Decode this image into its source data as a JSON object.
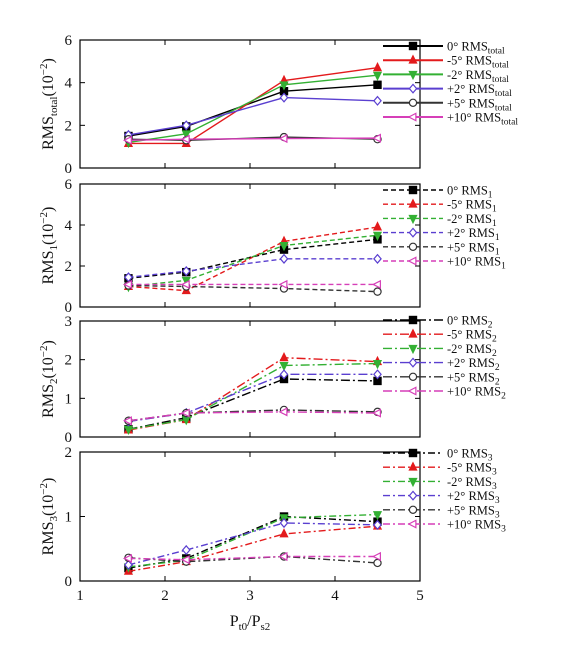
{
  "chart_data": [
    {
      "type": "line",
      "id": "total",
      "ylabel": {
        "main": "RMS",
        "sub": "total",
        "suffix": "(10",
        "exp": "−2",
        "close": ")"
      },
      "ylim": [
        0,
        6
      ],
      "yticks": [
        0,
        2,
        4,
        6
      ],
      "x": [
        1.57,
        2.25,
        3.4,
        4.5
      ],
      "series": [
        {
          "angle": "0°",
          "rms": "RMS",
          "sub": "total",
          "color": "#000000",
          "marker": "square",
          "dash": "solid",
          "values": [
            1.5,
            1.95,
            3.6,
            3.9
          ]
        },
        {
          "angle": "-5°",
          "rms": "RMS",
          "sub": "total",
          "color": "#e31a1c",
          "marker": "triangle",
          "dash": "solid",
          "values": [
            1.15,
            1.15,
            4.1,
            4.7
          ]
        },
        {
          "angle": "-2°",
          "rms": "RMS",
          "sub": "total",
          "color": "#33b033",
          "marker": "triangle-down",
          "dash": "solid",
          "values": [
            1.2,
            1.6,
            3.9,
            4.35
          ]
        },
        {
          "angle": "+2°",
          "rms": "RMS",
          "sub": "total",
          "color": "#5a3fd0",
          "marker": "diamond",
          "dash": "solid",
          "values": [
            1.55,
            2.0,
            3.3,
            3.15
          ]
        },
        {
          "angle": "+5°",
          "rms": "RMS",
          "sub": "total",
          "color": "#333333",
          "marker": "circle",
          "dash": "solid",
          "values": [
            1.35,
            1.3,
            1.45,
            1.35
          ]
        },
        {
          "angle": "+10°",
          "rms": "RMS",
          "sub": "total",
          "color": "#d63fb8",
          "marker": "triangle-left",
          "dash": "solid",
          "values": [
            1.3,
            1.35,
            1.38,
            1.4
          ]
        }
      ]
    },
    {
      "type": "line",
      "id": "rms1",
      "ylabel": {
        "main": "RMS",
        "sub": "1",
        "suffix": "(10",
        "exp": "−2",
        "close": ")"
      },
      "ylim": [
        0,
        6
      ],
      "yticks": [
        0,
        2,
        4,
        6
      ],
      "x": [
        1.57,
        2.25,
        3.4,
        4.5
      ],
      "series": [
        {
          "angle": "0°",
          "rms": "RMS",
          "sub": "1",
          "color": "#000000",
          "marker": "square",
          "dash": "dash",
          "values": [
            1.4,
            1.7,
            2.8,
            3.3
          ]
        },
        {
          "angle": "-5°",
          "rms": "RMS",
          "sub": "1",
          "color": "#e31a1c",
          "marker": "triangle",
          "dash": "dash",
          "values": [
            1.0,
            0.8,
            3.2,
            3.9
          ]
        },
        {
          "angle": "-2°",
          "rms": "RMS",
          "sub": "1",
          "color": "#33b033",
          "marker": "triangle-down",
          "dash": "dash",
          "values": [
            1.0,
            1.3,
            3.0,
            3.5
          ]
        },
        {
          "angle": "+2°",
          "rms": "RMS",
          "sub": "1",
          "color": "#5a3fd0",
          "marker": "diamond",
          "dash": "dash",
          "values": [
            1.45,
            1.75,
            2.35,
            2.35
          ]
        },
        {
          "angle": "+5°",
          "rms": "RMS",
          "sub": "1",
          "color": "#333333",
          "marker": "circle",
          "dash": "dash",
          "values": [
            1.05,
            1.0,
            0.9,
            0.75
          ]
        },
        {
          "angle": "+10°",
          "rms": "RMS",
          "sub": "1",
          "color": "#d63fb8",
          "marker": "triangle-left",
          "dash": "dash",
          "values": [
            1.1,
            1.1,
            1.1,
            1.1
          ]
        }
      ]
    },
    {
      "type": "line",
      "id": "rms2",
      "ylabel": {
        "main": "RMS",
        "sub": "2",
        "suffix": "(10",
        "exp": "−2",
        "close": ")"
      },
      "ylim": [
        0,
        3
      ],
      "yticks": [
        0,
        1,
        2,
        3
      ],
      "x": [
        1.57,
        2.25,
        3.4,
        4.5
      ],
      "series": [
        {
          "angle": "0°",
          "rms": "RMS",
          "sub": "2",
          "color": "#000000",
          "marker": "square",
          "dash": "dashdot",
          "values": [
            0.2,
            0.5,
            1.5,
            1.45
          ]
        },
        {
          "angle": "-5°",
          "rms": "RMS",
          "sub": "2",
          "color": "#e31a1c",
          "marker": "triangle",
          "dash": "dashdot",
          "values": [
            0.18,
            0.45,
            2.05,
            1.95
          ]
        },
        {
          "angle": "-2°",
          "rms": "RMS",
          "sub": "2",
          "color": "#33b033",
          "marker": "triangle-down",
          "dash": "dashdot",
          "values": [
            0.2,
            0.45,
            1.85,
            1.9
          ]
        },
        {
          "angle": "+2°",
          "rms": "RMS",
          "sub": "2",
          "color": "#5a3fd0",
          "marker": "diamond",
          "dash": "dashdot",
          "values": [
            0.4,
            0.62,
            1.62,
            1.62
          ]
        },
        {
          "angle": "+5°",
          "rms": "RMS",
          "sub": "2",
          "color": "#333333",
          "marker": "circle",
          "dash": "dashdot",
          "values": [
            0.42,
            0.62,
            0.7,
            0.65
          ]
        },
        {
          "angle": "+10°",
          "rms": "RMS",
          "sub": "2",
          "color": "#d63fb8",
          "marker": "triangle-left",
          "dash": "dashdot",
          "values": [
            0.42,
            0.62,
            0.65,
            0.62
          ]
        }
      ]
    },
    {
      "type": "line",
      "id": "rms3",
      "xlabel": {
        "main": "P",
        "sub1": "t0",
        "mid": "/P",
        "sub2": "s2"
      },
      "ylabel": {
        "main": "RMS",
        "sub": "3",
        "suffix": "(10",
        "exp": "−2",
        "close": ")"
      },
      "xlim": [
        1,
        5
      ],
      "xticks": [
        1,
        2,
        3,
        4,
        5
      ],
      "ylim": [
        0,
        2
      ],
      "yticks": [
        0,
        1,
        2
      ],
      "x": [
        1.57,
        2.25,
        3.4,
        4.5
      ],
      "series": [
        {
          "angle": "0°",
          "rms": "RMS",
          "sub": "3",
          "color": "#000000",
          "marker": "square",
          "dash": "dashdot2",
          "values": [
            0.2,
            0.35,
            1.0,
            0.92
          ]
        },
        {
          "angle": "-5°",
          "rms": "RMS",
          "sub": "3",
          "color": "#e31a1c",
          "marker": "triangle",
          "dash": "dashdot2",
          "values": [
            0.15,
            0.3,
            0.73,
            0.85
          ]
        },
        {
          "angle": "-2°",
          "rms": "RMS",
          "sub": "3",
          "color": "#33b033",
          "marker": "triangle-down",
          "dash": "dashdot2",
          "values": [
            0.22,
            0.32,
            0.98,
            1.03
          ]
        },
        {
          "angle": "+2°",
          "rms": "RMS",
          "sub": "3",
          "color": "#5a3fd0",
          "marker": "diamond",
          "dash": "dashdot2",
          "values": [
            0.25,
            0.48,
            0.9,
            0.87
          ]
        },
        {
          "angle": "+5°",
          "rms": "RMS",
          "sub": "3",
          "color": "#333333",
          "marker": "circle",
          "dash": "dashdot2",
          "values": [
            0.36,
            0.3,
            0.38,
            0.28
          ]
        },
        {
          "angle": "+10°",
          "rms": "RMS",
          "sub": "3",
          "color": "#d63fb8",
          "marker": "triangle-left",
          "dash": "dashdot2",
          "values": [
            0.35,
            0.33,
            0.38,
            0.38
          ]
        }
      ]
    }
  ]
}
